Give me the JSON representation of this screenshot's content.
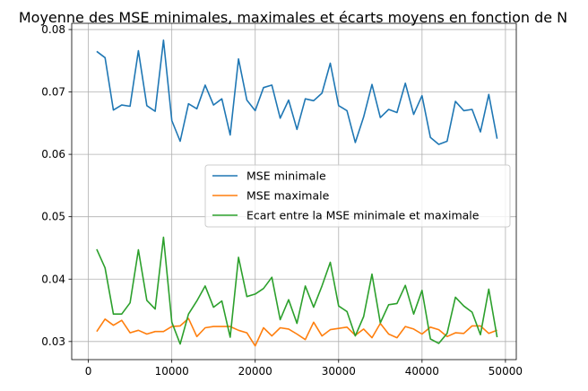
{
  "chart_data": {
    "type": "line",
    "title": "Moyenne des MSE minimales, maximales et écarts moyens en fonction de N",
    "xlabel": "",
    "ylabel": "",
    "xlim": [
      -2000,
      51300
    ],
    "ylim": [
      0.0271,
      0.081
    ],
    "xticks": [
      0,
      10000,
      20000,
      30000,
      40000,
      50000
    ],
    "yticks": [
      0.03,
      0.04,
      0.05,
      0.06,
      0.07,
      0.08
    ],
    "ytick_labels": [
      "0.03",
      "0.04",
      "0.05",
      "0.06",
      "0.07",
      "0.08"
    ],
    "grid": true,
    "legend_position": "center-right",
    "x": [
      1000,
      2000,
      3000,
      4000,
      5000,
      6000,
      7000,
      8000,
      9000,
      10000,
      11000,
      12000,
      13000,
      14000,
      15000,
      16000,
      17000,
      18000,
      19000,
      20000,
      21000,
      22000,
      23000,
      24000,
      25000,
      26000,
      27000,
      28000,
      29000,
      30000,
      31000,
      32000,
      33000,
      34000,
      35000,
      36000,
      37000,
      38000,
      39000,
      40000,
      41000,
      42000,
      43000,
      44000,
      45000,
      46000,
      47000,
      48000,
      49000
    ],
    "series": [
      {
        "name": "MSE minimale",
        "color": "#1f77b4",
        "values": [
          0.0765,
          0.0755,
          0.0671,
          0.0679,
          0.0677,
          0.0766,
          0.0678,
          0.0669,
          0.0783,
          0.0654,
          0.0621,
          0.0681,
          0.0673,
          0.0711,
          0.0679,
          0.0689,
          0.0631,
          0.0753,
          0.0687,
          0.067,
          0.0707,
          0.0711,
          0.0658,
          0.0687,
          0.064,
          0.0689,
          0.0686,
          0.0698,
          0.0746,
          0.0678,
          0.067,
          0.0619,
          0.066,
          0.0712,
          0.0659,
          0.0672,
          0.0667,
          0.0714,
          0.0664,
          0.0694,
          0.0627,
          0.0616,
          0.0621,
          0.0685,
          0.067,
          0.0672,
          0.0636,
          0.0696,
          0.0625
        ]
      },
      {
        "name": "MSE maximale",
        "color": "#ff7f0e",
        "values": [
          0.0316,
          0.0336,
          0.0326,
          0.0334,
          0.0314,
          0.0318,
          0.0312,
          0.0316,
          0.0316,
          0.0324,
          0.0325,
          0.0337,
          0.0308,
          0.0322,
          0.0324,
          0.0324,
          0.0324,
          0.0318,
          0.0314,
          0.0293,
          0.0322,
          0.0309,
          0.0322,
          0.032,
          0.0312,
          0.0303,
          0.0331,
          0.0309,
          0.0319,
          0.0321,
          0.0323,
          0.031,
          0.032,
          0.0306,
          0.0329,
          0.0312,
          0.0306,
          0.0324,
          0.032,
          0.0312,
          0.0323,
          0.0319,
          0.0308,
          0.0314,
          0.0313,
          0.0325,
          0.0325,
          0.0313,
          0.0318
        ]
      },
      {
        "name": "Ecart entre la MSE minimale et maximale",
        "color": "#2ca02c",
        "values": [
          0.0448,
          0.0418,
          0.0344,
          0.0344,
          0.0362,
          0.0447,
          0.0366,
          0.0352,
          0.0467,
          0.0331,
          0.0296,
          0.0344,
          0.0365,
          0.0389,
          0.0355,
          0.0365,
          0.0307,
          0.0435,
          0.0372,
          0.0376,
          0.0385,
          0.0403,
          0.0335,
          0.0367,
          0.0329,
          0.0389,
          0.0355,
          0.0389,
          0.0427,
          0.0357,
          0.0348,
          0.0309,
          0.034,
          0.0408,
          0.033,
          0.0359,
          0.0361,
          0.039,
          0.0344,
          0.0382,
          0.0304,
          0.0297,
          0.0313,
          0.0371,
          0.0357,
          0.0347,
          0.0311,
          0.0384,
          0.0307
        ]
      }
    ]
  }
}
